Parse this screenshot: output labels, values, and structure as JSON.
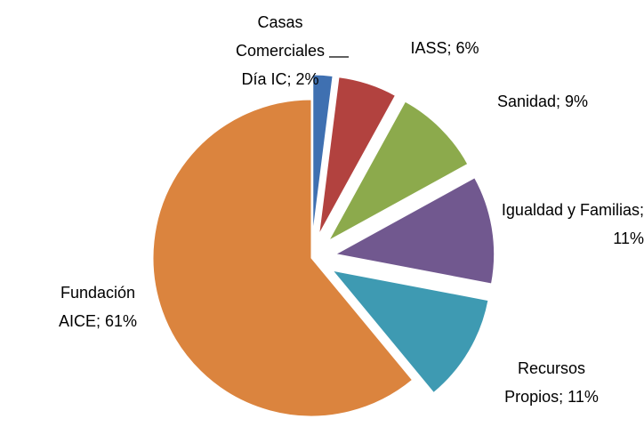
{
  "chart_data": {
    "type": "pie",
    "categories": [
      "Casas Comerciales Día IC",
      "IASS",
      "Sanidad",
      "Igualdad y Familias",
      "Recursos Propios",
      "Fundación AICE"
    ],
    "values": [
      2,
      6,
      9,
      11,
      11,
      61
    ],
    "value_labels": [
      "Casas Comerciales Día IC; 2%",
      "IASS; 6%",
      "Sanidad; 9%",
      "Igualdad y Familias; 11%",
      "Recursos Propios; 11%",
      "Fundación AICE; 61%"
    ],
    "colors": [
      "#3f70b1",
      "#b2423f",
      "#8caa4c",
      "#71588f",
      "#3e9ab2",
      "#db843e"
    ],
    "exploded": [
      true,
      true,
      true,
      true,
      true,
      false
    ]
  }
}
